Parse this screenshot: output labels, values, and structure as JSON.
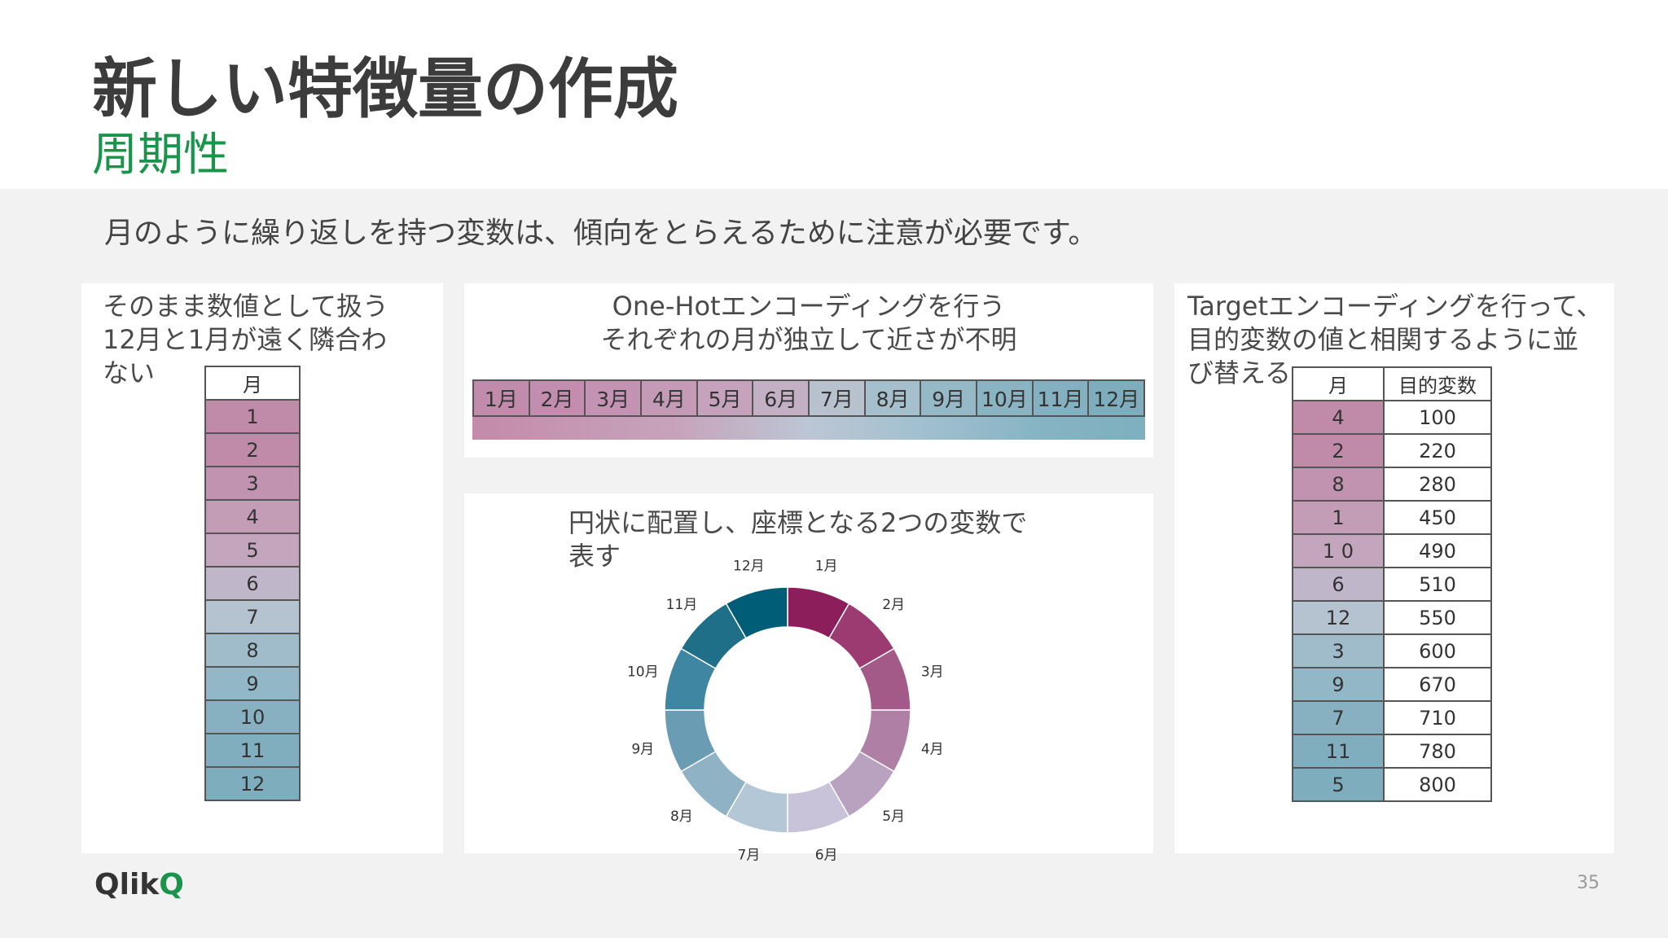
{
  "slide": {
    "title": "新しい特徴量の作成",
    "subtitle": "周期性",
    "intro": "月のように繰り返しを持つ変数は、傾向をとらえるために注意が必要です。",
    "page_number": "35",
    "logo_text": "Qlik",
    "logo_mark": "Q"
  },
  "panel_numeric": {
    "caption_lines": [
      "そのまま数値として扱う",
      "12月と1月が遠く隣合わ",
      "ない"
    ],
    "table_header": "月",
    "rows": [
      {
        "month": "1",
        "color": "#c08aa9"
      },
      {
        "month": "2",
        "color": "#c08aa9"
      },
      {
        "month": "3",
        "color": "#c193b0"
      },
      {
        "month": "4",
        "color": "#c39cb6"
      },
      {
        "month": "5",
        "color": "#c3a6bd"
      },
      {
        "month": "6",
        "color": "#c0b6c9"
      },
      {
        "month": "7",
        "color": "#b5c3d0"
      },
      {
        "month": "8",
        "color": "#a0bbc9"
      },
      {
        "month": "9",
        "color": "#92b7c6"
      },
      {
        "month": "10",
        "color": "#87b1c1"
      },
      {
        "month": "11",
        "color": "#80aebf"
      },
      {
        "month": "12",
        "color": "#7eaebe"
      }
    ]
  },
  "panel_onehot": {
    "caption_lines": [
      "One-Hotエンコーディングを行う",
      "それぞれの月が独立して近さが不明"
    ],
    "months": [
      "1月",
      "2月",
      "3月",
      "4月",
      "5月",
      "6月",
      "7月",
      "8月",
      "9月",
      "10月",
      "11月",
      "12月"
    ],
    "colors": [
      "#c18bab",
      "#c38db0",
      "#c492b3",
      "#c59ab7",
      "#c5a3bc",
      "#c4b0c5",
      "#b8c1ce",
      "#a6bfcd",
      "#96b9c8",
      "#8bb4c3",
      "#83b1c1",
      "#7eaebe"
    ]
  },
  "panel_circular": {
    "caption_lines": [
      "円状に配置し、座標となる2つの変数で",
      "表す"
    ],
    "segments": [
      {
        "label": "1月",
        "color": "#8c1f5b"
      },
      {
        "label": "2月",
        "color": "#9c3a72"
      },
      {
        "label": "3月",
        "color": "#a45a88"
      },
      {
        "label": "4月",
        "color": "#b07fa5"
      },
      {
        "label": "5月",
        "color": "#b9a2c0"
      },
      {
        "label": "6月",
        "color": "#c8c3d9"
      },
      {
        "label": "7月",
        "color": "#b4c7d7"
      },
      {
        "label": "8月",
        "color": "#8fb2c4"
      },
      {
        "label": "9月",
        "color": "#6a9db4"
      },
      {
        "label": "10月",
        "color": "#3f86a2"
      },
      {
        "label": "11月",
        "color": "#1f6f89"
      },
      {
        "label": "12月",
        "color": "#005d78"
      }
    ]
  },
  "panel_target": {
    "caption_lines": [
      "Targetエンコーディングを行って、",
      "目的変数の値と相関するように並",
      "び替える"
    ],
    "headers": [
      "月",
      "目的変数"
    ],
    "rows": [
      {
        "month": "4",
        "target": "100",
        "color": "#c08aa9"
      },
      {
        "month": "2",
        "target": "220",
        "color": "#c08aa9"
      },
      {
        "month": "8",
        "target": "280",
        "color": "#c193b0"
      },
      {
        "month": "1",
        "target": "450",
        "color": "#c39cb6"
      },
      {
        "month": "1 0",
        "target": "490",
        "color": "#c3a6bd"
      },
      {
        "month": "6",
        "target": "510",
        "color": "#c0b6c9"
      },
      {
        "month": "12",
        "target": "550",
        "color": "#b5c3d0"
      },
      {
        "month": "3",
        "target": "600",
        "color": "#a0bbc9"
      },
      {
        "month": "9",
        "target": "670",
        "color": "#92b7c6"
      },
      {
        "month": "7",
        "target": "710",
        "color": "#87b1c1"
      },
      {
        "month": "11",
        "target": "780",
        "color": "#80aebf"
      },
      {
        "month": "5",
        "target": "800",
        "color": "#7eaebe"
      }
    ]
  }
}
